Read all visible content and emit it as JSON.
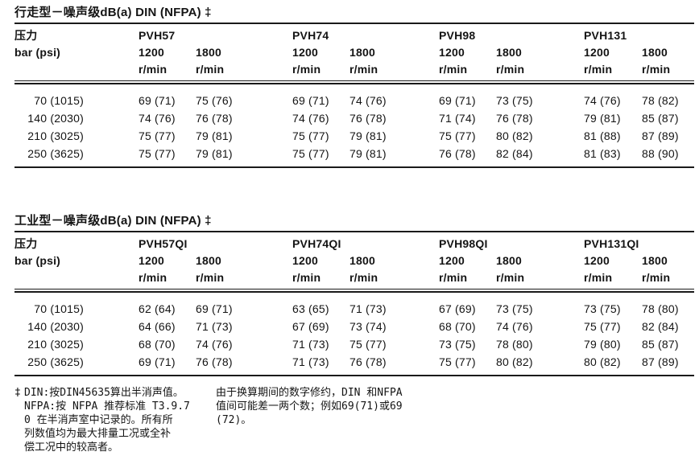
{
  "page": {
    "background": "#ffffff",
    "text_color": "#141414"
  },
  "tables": [
    {
      "title": "行走型－噪声级dB(a) DIN (NFPA) ‡",
      "pressure_label": "压力",
      "pressure_unit": "bar (psi)",
      "models": [
        "PVH57",
        "PVH74",
        "PVH98",
        "PVH131"
      ],
      "rpm_values": [
        "1200",
        "1800"
      ],
      "rpm_unit": "r/min",
      "rows": [
        {
          "pressure": "70 (1015)",
          "values": [
            "69 (71)",
            "75 (76)",
            "69 (71)",
            "74 (76)",
            "69 (71)",
            "73 (75)",
            "74 (76)",
            "78 (82)"
          ]
        },
        {
          "pressure": "140 (2030)",
          "values": [
            "74 (76)",
            "76 (78)",
            "74 (76)",
            "76 (78)",
            "71 (74)",
            "76 (78)",
            "79 (81)",
            "85 (87)"
          ]
        },
        {
          "pressure": "210 (3025)",
          "values": [
            "75 (77)",
            "79 (81)",
            "75 (77)",
            "79 (81)",
            "75 (77)",
            "80 (82)",
            "81 (88)",
            "87 (89)"
          ]
        },
        {
          "pressure": "250 (3625)",
          "values": [
            "75 (77)",
            "79 (81)",
            "75 (77)",
            "79 (81)",
            "76 (78)",
            "82 (84)",
            "81 (83)",
            "88 (90)"
          ]
        }
      ]
    },
    {
      "title": "工业型－噪声级dB(a) DIN (NFPA) ‡",
      "pressure_label": "压力",
      "pressure_unit": "bar (psi)",
      "models": [
        "PVH57QI",
        "PVH74QI",
        "PVH98QI",
        "PVH131QI"
      ],
      "rpm_values": [
        "1200",
        "1800"
      ],
      "rpm_unit": "r/min",
      "rows": [
        {
          "pressure": "70 (1015)",
          "values": [
            "62 (64)",
            "69 (71)",
            "63 (65)",
            "71 (73)",
            "67 (69)",
            "73 (75)",
            "73 (75)",
            "78 (80)"
          ]
        },
        {
          "pressure": "140 (2030)",
          "values": [
            "64 (66)",
            "71 (73)",
            "67 (69)",
            "73 (74)",
            "68 (70)",
            "74 (76)",
            "75 (77)",
            "82 (84)"
          ]
        },
        {
          "pressure": "210 (3025)",
          "values": [
            "68 (70)",
            "74 (76)",
            "71 (73)",
            "75 (77)",
            "73 (75)",
            "78 (80)",
            "79 (80)",
            "85 (87)"
          ]
        },
        {
          "pressure": "250 (3625)",
          "values": [
            "69 (71)",
            "76 (78)",
            "71 (73)",
            "76 (78)",
            "75 (77)",
            "80 (82)",
            "80 (82)",
            "87 (89)"
          ]
        }
      ]
    }
  ],
  "footnote": {
    "marker": "‡",
    "left_lines": [
      "DIN:按DIN45635算出半消声值。",
      "NFPA:按 NFPA 推荐标准 T3.9.7",
      "0 在半消声室中记录的。所有所",
      "列数值均为最大排量工况或全补",
      "偿工况中的较高者。"
    ],
    "right_lines": [
      "由于换算期间的数字修约，DIN 和NFPA",
      "值间可能差一两个数；例如69(71)或69",
      "(72)。"
    ]
  }
}
